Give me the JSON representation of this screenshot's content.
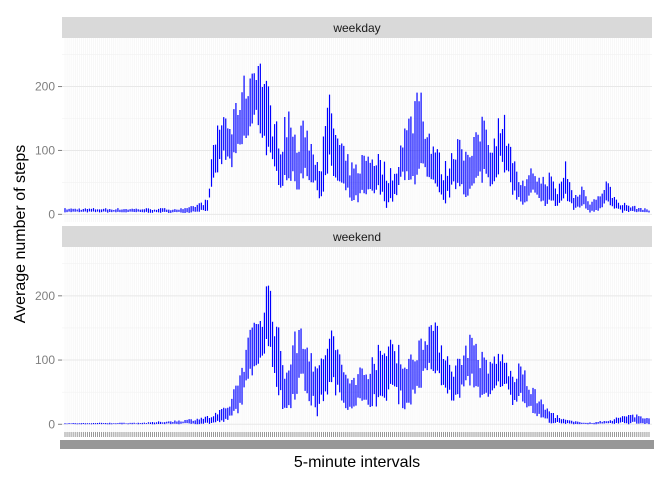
{
  "chart_data": {
    "type": "line",
    "title": "",
    "xlabel": "5-minute intervals",
    "ylabel": "Average number of steps",
    "ylim": [
      -12,
      276
    ],
    "yticks": [
      0,
      100,
      200
    ],
    "x_tick_labels_note": "",
    "colors": {
      "line": "#0000ff",
      "panel_bg": "#ffffff",
      "grid": "#ebebeb",
      "strip_bg": "#d9d9d9",
      "tick": "#7f7f7f"
    },
    "grid": true,
    "legend": "none",
    "n_intervals": 288,
    "facets": [
      {
        "name": "weekday",
        "envelope": [
          [
            0,
            3,
            10
          ],
          [
            60,
            2,
            10
          ],
          [
            70,
            5,
            25
          ],
          [
            72,
            30,
            90
          ],
          [
            75,
            60,
            150
          ],
          [
            78,
            80,
            170
          ],
          [
            82,
            70,
            150
          ],
          [
            86,
            90,
            210
          ],
          [
            90,
            110,
            230
          ],
          [
            94,
            140,
            265
          ],
          [
            98,
            100,
            240
          ],
          [
            102,
            60,
            170
          ],
          [
            106,
            40,
            130
          ],
          [
            110,
            50,
            180
          ],
          [
            114,
            30,
            120
          ],
          [
            118,
            60,
            160
          ],
          [
            122,
            40,
            110
          ],
          [
            126,
            20,
            100
          ],
          [
            130,
            60,
            200
          ],
          [
            134,
            40,
            130
          ],
          [
            138,
            30,
            100
          ],
          [
            142,
            10,
            80
          ],
          [
            146,
            20,
            100
          ],
          [
            150,
            20,
            110
          ],
          [
            154,
            30,
            100
          ],
          [
            158,
            10,
            80
          ],
          [
            162,
            20,
            70
          ],
          [
            166,
            50,
            140
          ],
          [
            170,
            30,
            170
          ],
          [
            174,
            60,
            240
          ],
          [
            178,
            40,
            150
          ],
          [
            182,
            30,
            120
          ],
          [
            186,
            10,
            80
          ],
          [
            190,
            30,
            100
          ],
          [
            194,
            40,
            150
          ],
          [
            198,
            20,
            100
          ],
          [
            202,
            40,
            130
          ],
          [
            206,
            50,
            180
          ],
          [
            210,
            40,
            120
          ],
          [
            214,
            70,
            170
          ],
          [
            218,
            40,
            150
          ],
          [
            222,
            20,
            70
          ],
          [
            226,
            10,
            50
          ],
          [
            230,
            30,
            80
          ],
          [
            234,
            10,
            60
          ],
          [
            238,
            15,
            70
          ],
          [
            242,
            10,
            40
          ],
          [
            246,
            20,
            90
          ],
          [
            250,
            5,
            30
          ],
          [
            254,
            10,
            50
          ],
          [
            258,
            2,
            25
          ],
          [
            262,
            5,
            30
          ],
          [
            266,
            15,
            60
          ],
          [
            270,
            5,
            30
          ],
          [
            274,
            2,
            20
          ],
          [
            278,
            3,
            15
          ],
          [
            287,
            2,
            8
          ]
        ]
      },
      {
        "name": "weekend",
        "envelope": [
          [
            0,
            0,
            2
          ],
          [
            40,
            0,
            3
          ],
          [
            60,
            0,
            8
          ],
          [
            72,
            0,
            15
          ],
          [
            80,
            3,
            30
          ],
          [
            86,
            20,
            90
          ],
          [
            90,
            60,
            140
          ],
          [
            94,
            90,
            180
          ],
          [
            98,
            100,
            200
          ],
          [
            100,
            120,
            248
          ],
          [
            104,
            50,
            170
          ],
          [
            108,
            10,
            100
          ],
          [
            112,
            30,
            140
          ],
          [
            116,
            60,
            170
          ],
          [
            120,
            30,
            150
          ],
          [
            124,
            10,
            90
          ],
          [
            128,
            40,
            140
          ],
          [
            132,
            50,
            160
          ],
          [
            136,
            30,
            100
          ],
          [
            140,
            20,
            80
          ],
          [
            144,
            30,
            90
          ],
          [
            148,
            20,
            100
          ],
          [
            152,
            30,
            130
          ],
          [
            156,
            20,
            120
          ],
          [
            160,
            50,
            150
          ],
          [
            164,
            30,
            140
          ],
          [
            168,
            20,
            100
          ],
          [
            172,
            40,
            130
          ],
          [
            176,
            60,
            160
          ],
          [
            180,
            80,
            170
          ],
          [
            184,
            60,
            150
          ],
          [
            188,
            40,
            120
          ],
          [
            192,
            30,
            100
          ],
          [
            196,
            50,
            130
          ],
          [
            200,
            60,
            150
          ],
          [
            204,
            40,
            120
          ],
          [
            208,
            30,
            100
          ],
          [
            212,
            50,
            120
          ],
          [
            216,
            60,
            110
          ],
          [
            220,
            30,
            80
          ],
          [
            224,
            40,
            100
          ],
          [
            228,
            20,
            70
          ],
          [
            232,
            10,
            50
          ],
          [
            236,
            5,
            30
          ],
          [
            240,
            0,
            20
          ],
          [
            244,
            0,
            10
          ],
          [
            250,
            0,
            5
          ],
          [
            260,
            0,
            3
          ],
          [
            270,
            0,
            10
          ],
          [
            278,
            0,
            20
          ],
          [
            287,
            0,
            10
          ]
        ]
      }
    ]
  }
}
